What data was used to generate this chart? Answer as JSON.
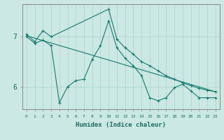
{
  "title": "",
  "xlabel": "Humidex (Indice chaleur)",
  "ylabel": "",
  "bg_color": "#cbe8e3",
  "grid_color": "#aed8d2",
  "line_color": "#1a7a6e",
  "axis_color": "#888888",
  "text_color": "#1a6a60",
  "yticks": [
    6,
    7
  ],
  "xticks": [
    0,
    1,
    2,
    3,
    4,
    5,
    6,
    7,
    8,
    9,
    10,
    11,
    12,
    13,
    14,
    15,
    16,
    17,
    18,
    19,
    20,
    21,
    22,
    23
  ],
  "xlim": [
    -0.5,
    23.5
  ],
  "ylim": [
    5.55,
    7.65
  ],
  "series1_x": [
    0,
    1,
    2,
    3,
    4,
    5,
    6,
    7,
    8,
    9,
    10,
    11,
    12,
    13,
    14,
    15,
    16,
    17,
    18,
    19,
    20,
    21,
    22,
    23
  ],
  "series1_y": [
    7.0,
    6.87,
    6.93,
    6.82,
    5.68,
    6.0,
    6.12,
    6.15,
    6.55,
    6.82,
    7.32,
    6.78,
    6.57,
    6.42,
    6.22,
    5.78,
    5.72,
    5.78,
    5.98,
    6.05,
    5.92,
    5.78,
    5.78,
    5.78
  ],
  "series2_x": [
    0,
    1,
    2,
    3,
    10,
    11,
    12,
    13,
    14,
    15,
    16,
    17,
    18,
    19,
    20,
    21,
    22,
    23
  ],
  "series2_y": [
    7.05,
    6.9,
    7.12,
    7.0,
    7.55,
    6.95,
    6.78,
    6.65,
    6.5,
    6.42,
    6.32,
    6.22,
    6.15,
    6.08,
    6.02,
    5.97,
    5.93,
    5.9
  ],
  "series3_x": [
    0,
    23
  ],
  "series3_y": [
    7.02,
    5.9
  ],
  "figsize": [
    3.2,
    2.0
  ],
  "dpi": 100
}
